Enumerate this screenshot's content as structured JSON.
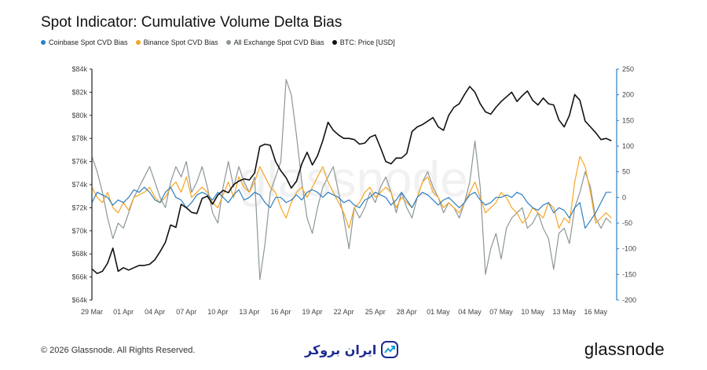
{
  "title": "Spot Indicator: Cumulative Volume Delta Bias",
  "legend": [
    {
      "label": "Coinbase Spot CVD Bias",
      "color": "#2f7fc1"
    },
    {
      "label": "Binance Spot CVD Bias",
      "color": "#f5a623"
    },
    {
      "label": "All Exchange Spot CVD Bias",
      "color": "#8c9699"
    },
    {
      "label": "BTC: Price [USD]",
      "color": "#111111"
    }
  ],
  "footer": {
    "copyright": "© 2026 Glassnode. All Rights Reserved.",
    "brand_logo": "ایران بروکر",
    "glassnode_logo": "glassnode"
  },
  "watermark": "glassnode",
  "chart_data": {
    "type": "line",
    "x_tick_labels": [
      "29 Mar",
      "01 Apr",
      "04 Apr",
      "07 Apr",
      "10 Apr",
      "13 Apr",
      "16 Apr",
      "19 Apr",
      "22 Apr",
      "25 Apr",
      "28 Apr",
      "01 May",
      "04 May",
      "07 May",
      "10 May",
      "13 May",
      "16 May"
    ],
    "x_range_days": [
      0,
      50
    ],
    "y_left": {
      "label": "",
      "ticks": [
        "$64k",
        "$66k",
        "$68k",
        "$70k",
        "$72k",
        "$74k",
        "$76k",
        "$78k",
        "$80k",
        "$82k",
        "$84k"
      ],
      "range": [
        64000,
        84000
      ]
    },
    "y_right": {
      "label": "",
      "ticks": [
        "-200",
        "-150",
        "-100",
        "-50",
        "0",
        "50",
        "100",
        "150",
        "200",
        "250"
      ],
      "range": [
        -200,
        250
      ]
    },
    "series": [
      {
        "name": "BTC: Price [USD]",
        "axis": "left",
        "color": "#111111",
        "x": [
          0,
          0.5,
          1,
          1.5,
          2,
          2.5,
          3,
          3.5,
          4,
          4.5,
          5,
          5.5,
          6,
          6.5,
          7,
          7.5,
          8,
          8.5,
          9,
          9.5,
          10,
          10.5,
          11,
          11.5,
          12,
          12.5,
          13,
          13.5,
          14,
          14.5,
          15,
          15.5,
          16,
          16.5,
          17,
          17.5,
          18,
          18.5,
          19,
          19.5,
          20,
          20.5,
          21,
          21.5,
          22,
          22.5,
          23,
          23.5,
          24,
          24.5,
          25,
          25.5,
          26,
          26.5,
          27,
          27.5,
          28,
          28.5,
          29,
          29.5,
          30,
          30.5,
          31,
          31.5,
          32,
          32.5,
          33,
          33.5,
          34,
          34.5,
          35,
          35.5,
          36,
          36.5,
          37,
          37.5,
          38,
          38.5,
          39,
          39.5,
          40,
          40.5,
          41,
          41.5,
          42,
          42.5,
          43,
          43.5,
          44,
          44.5,
          45,
          45.5,
          46,
          46.5,
          47,
          47.5,
          48,
          48.5,
          49,
          49.5
        ],
        "y": [
          66700,
          66300,
          66500,
          67200,
          68500,
          66500,
          66800,
          66600,
          66800,
          67000,
          67000,
          67100,
          67500,
          68200,
          69000,
          70500,
          70300,
          72300,
          72000,
          71600,
          71500,
          72800,
          73000,
          72300,
          73100,
          73500,
          73300,
          74000,
          74300,
          74500,
          74400,
          75000,
          77300,
          77500,
          77400,
          76000,
          75200,
          74600,
          73700,
          74300,
          75800,
          76800,
          75700,
          76500,
          77800,
          79400,
          78700,
          78300,
          78000,
          78000,
          77900,
          77500,
          77600,
          78100,
          78300,
          77200,
          76000,
          75800,
          76300,
          76300,
          76700,
          78600,
          79000,
          79200,
          79500,
          79800,
          79000,
          78700,
          80000,
          80700,
          81000,
          81800,
          82500,
          82000,
          81000,
          80300,
          80100,
          80700,
          81200,
          81600,
          82000,
          81200,
          81700,
          82100,
          81300,
          80900,
          81500,
          81000,
          80900,
          79600,
          79000,
          80000,
          81800,
          81300,
          79500,
          79000,
          78500,
          77900,
          78000,
          77800
        ]
      },
      {
        "name": "Coinbase Spot CVD Bias",
        "axis": "right",
        "color": "#2f7fc1",
        "x": [
          0,
          0.5,
          1,
          1.5,
          2,
          2.5,
          3,
          3.5,
          4,
          4.5,
          5,
          5.5,
          6,
          6.5,
          7,
          7.5,
          8,
          8.5,
          9,
          9.5,
          10,
          10.5,
          11,
          11.5,
          12,
          12.5,
          13,
          13.5,
          14,
          14.5,
          15,
          15.5,
          16,
          16.5,
          17,
          17.5,
          18,
          18.5,
          19,
          19.5,
          20,
          20.5,
          21,
          21.5,
          22,
          22.5,
          23,
          23.5,
          24,
          24.5,
          25,
          25.5,
          26,
          26.5,
          27,
          27.5,
          28,
          28.5,
          29,
          29.5,
          30,
          30.5,
          31,
          31.5,
          32,
          32.5,
          33,
          33.5,
          34,
          34.5,
          35,
          35.5,
          36,
          36.5,
          37,
          37.5,
          38,
          38.5,
          39,
          39.5,
          40,
          40.5,
          41,
          41.5,
          42,
          42.5,
          43,
          43.5,
          44,
          44.5,
          45,
          45.5,
          46,
          46.5,
          47,
          47.5,
          48,
          48.5,
          49,
          49.5
        ],
        "y": [
          -10,
          10,
          5,
          0,
          -15,
          -5,
          -10,
          0,
          15,
          10,
          20,
          10,
          -5,
          -10,
          10,
          20,
          0,
          -5,
          -20,
          -10,
          5,
          10,
          5,
          -5,
          10,
          0,
          -10,
          5,
          15,
          -5,
          0,
          10,
          5,
          -10,
          -20,
          0,
          0,
          -10,
          -5,
          5,
          -5,
          10,
          15,
          10,
          0,
          10,
          5,
          0,
          -10,
          -5,
          -15,
          -20,
          -5,
          0,
          10,
          5,
          0,
          -15,
          -5,
          10,
          -5,
          -20,
          0,
          10,
          5,
          -5,
          -15,
          -5,
          0,
          -10,
          -20,
          -10,
          5,
          10,
          -5,
          -15,
          -10,
          0,
          0,
          5,
          0,
          10,
          5,
          -10,
          -20,
          -25,
          -15,
          -10,
          -30,
          -20,
          -25,
          -40,
          -20,
          -10,
          -60,
          -45,
          -30,
          -10,
          10,
          10
        ]
      },
      {
        "name": "Binance Spot CVD Bias",
        "axis": "right",
        "color": "#f5a623",
        "x": [
          0,
          0.5,
          1,
          1.5,
          2,
          2.5,
          3,
          3.5,
          4,
          4.5,
          5,
          5.5,
          6,
          6.5,
          7,
          7.5,
          8,
          8.5,
          9,
          9.5,
          10,
          10.5,
          11,
          11.5,
          12,
          12.5,
          13,
          13.5,
          14,
          14.5,
          15,
          15.5,
          16,
          16.5,
          17,
          17.5,
          18,
          18.5,
          19,
          19.5,
          20,
          20.5,
          21,
          21.5,
          22,
          22.5,
          23,
          23.5,
          24,
          24.5,
          25,
          25.5,
          26,
          26.5,
          27,
          27.5,
          28,
          28.5,
          29,
          29.5,
          30,
          30.5,
          31,
          31.5,
          32,
          32.5,
          33,
          33.5,
          34,
          34.5,
          35,
          35.5,
          36,
          36.5,
          37,
          37.5,
          38,
          38.5,
          39,
          39.5,
          40,
          40.5,
          41,
          41.5,
          42,
          42.5,
          43,
          43.5,
          44,
          44.5,
          45,
          45.5,
          46,
          46.5,
          47,
          47.5,
          48,
          48.5,
          49,
          49.5
        ],
        "y": [
          20,
          0,
          -10,
          10,
          -20,
          -30,
          -10,
          -25,
          0,
          5,
          10,
          20,
          0,
          -10,
          0,
          20,
          30,
          10,
          40,
          0,
          10,
          20,
          10,
          -10,
          -20,
          5,
          30,
          0,
          40,
          20,
          10,
          30,
          60,
          40,
          20,
          10,
          -20,
          -40,
          -10,
          10,
          20,
          0,
          20,
          40,
          60,
          30,
          10,
          -10,
          -30,
          -60,
          -20,
          -10,
          10,
          20,
          0,
          10,
          20,
          10,
          -20,
          0,
          -10,
          -20,
          0,
          30,
          40,
          10,
          0,
          -20,
          -10,
          -20,
          -30,
          -10,
          10,
          30,
          0,
          -30,
          -20,
          -10,
          10,
          0,
          -20,
          -30,
          -50,
          -40,
          -20,
          -30,
          -40,
          -10,
          -20,
          -60,
          -40,
          -50,
          30,
          80,
          60,
          10,
          -50,
          -40,
          -30,
          -40
        ]
      },
      {
        "name": "All Exchange Spot CVD Bias",
        "axis": "right",
        "color": "#8c9699",
        "x": [
          0,
          0.5,
          1,
          1.5,
          2,
          2.5,
          3,
          3.5,
          4,
          4.5,
          5,
          5.5,
          6,
          6.5,
          7,
          7.5,
          8,
          8.5,
          9,
          9.5,
          10,
          10.5,
          11,
          11.5,
          12,
          12.5,
          13,
          13.5,
          14,
          14.5,
          15,
          15.5,
          16,
          16.5,
          17,
          17.5,
          18,
          18.5,
          19,
          19.5,
          20,
          20.5,
          21,
          21.5,
          22,
          22.5,
          23,
          23.5,
          24,
          24.5,
          25,
          25.5,
          26,
          26.5,
          27,
          27.5,
          28,
          28.5,
          29,
          29.5,
          30,
          30.5,
          31,
          31.5,
          32,
          32.5,
          33,
          33.5,
          34,
          34.5,
          35,
          35.5,
          36,
          36.5,
          37,
          37.5,
          38,
          38.5,
          39,
          39.5,
          40,
          40.5,
          41,
          41.5,
          42,
          42.5,
          43,
          43.5,
          44,
          44.5,
          45,
          45.5,
          46,
          46.5,
          47,
          47.5,
          48,
          48.5,
          49,
          49.5
        ],
        "y": [
          80,
          50,
          10,
          -40,
          -80,
          -50,
          -60,
          -30,
          0,
          20,
          40,
          60,
          30,
          0,
          -20,
          30,
          60,
          40,
          70,
          10,
          30,
          60,
          20,
          -30,
          -50,
          20,
          70,
          20,
          60,
          30,
          10,
          40,
          -160,
          -90,
          10,
          40,
          70,
          230,
          200,
          120,
          30,
          -40,
          -70,
          -20,
          20,
          40,
          60,
          10,
          -40,
          -100,
          -20,
          -40,
          -20,
          10,
          -10,
          20,
          40,
          10,
          -30,
          10,
          -20,
          -40,
          0,
          30,
          50,
          20,
          0,
          -30,
          -10,
          -20,
          -40,
          -10,
          30,
          110,
          20,
          -150,
          -100,
          -70,
          -120,
          -60,
          -40,
          -30,
          -20,
          -60,
          -50,
          -30,
          -60,
          -80,
          -140,
          -70,
          -60,
          -90,
          -20,
          10,
          50,
          20,
          -40,
          -60,
          -40,
          -50
        ]
      }
    ],
    "grid": false,
    "legend_position": "top-left"
  }
}
